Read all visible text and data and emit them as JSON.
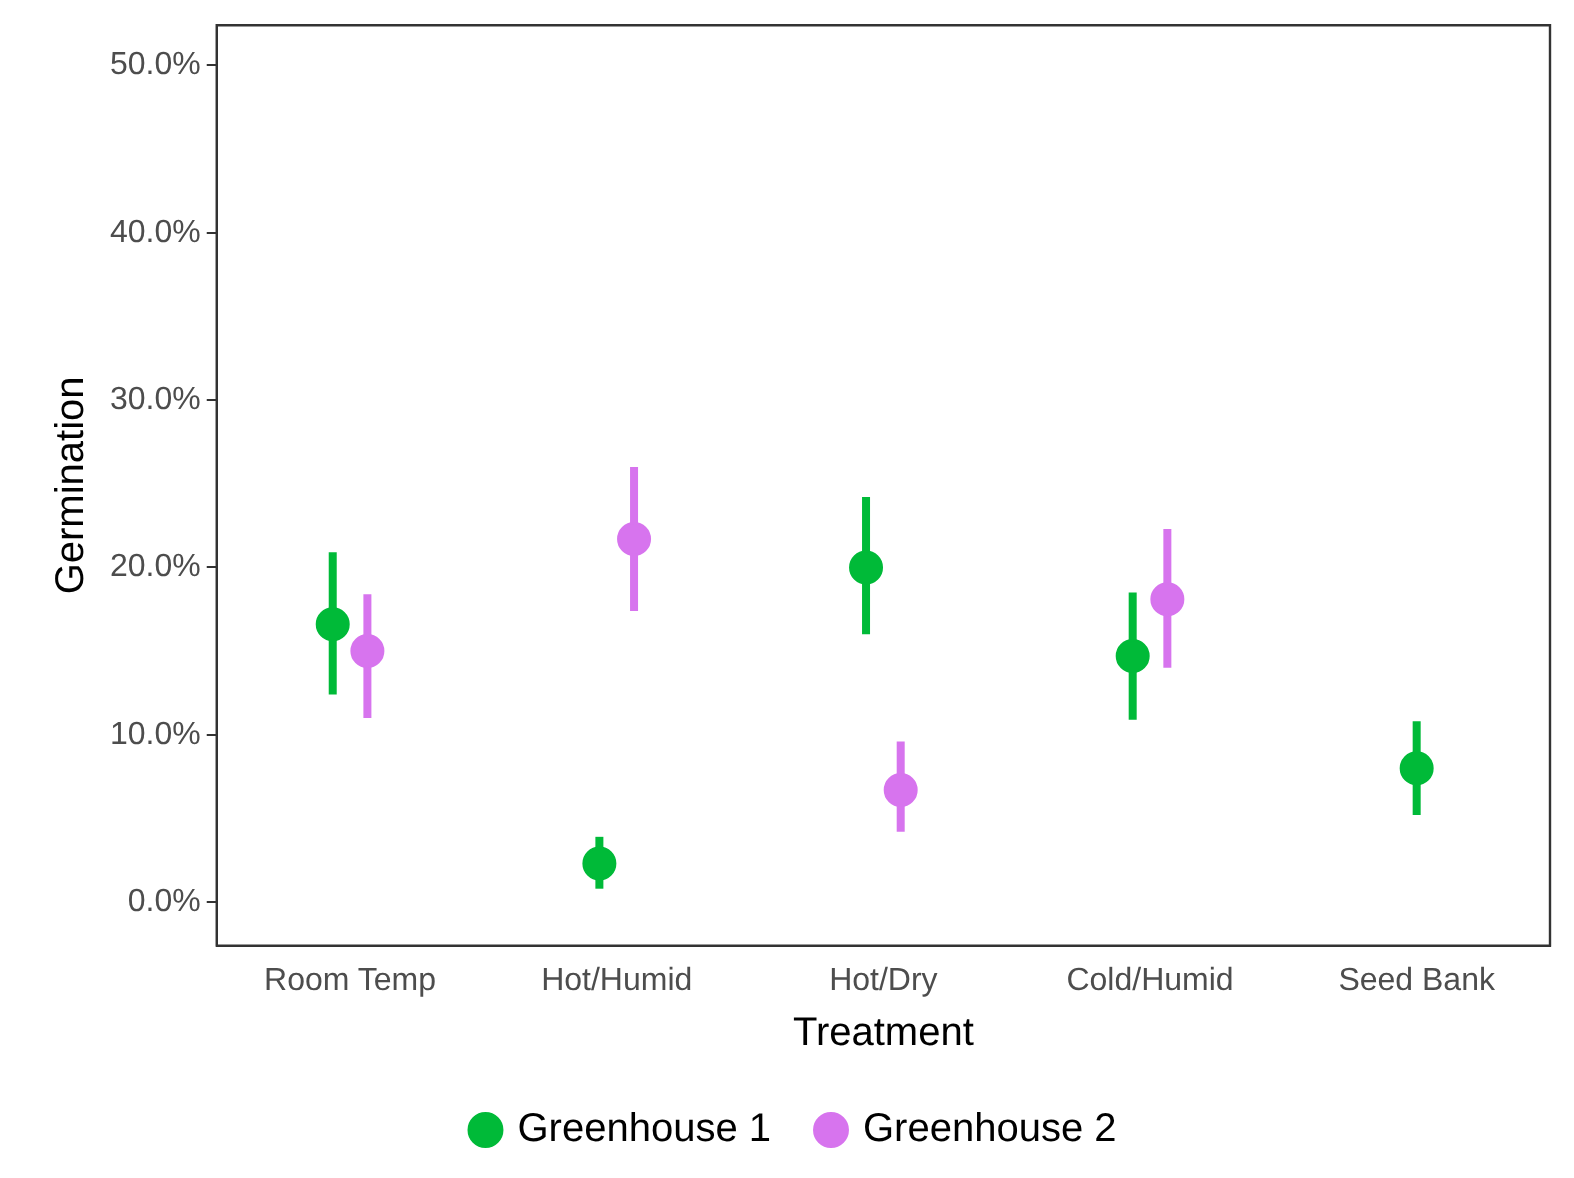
{
  "chart_data": {
    "type": "scatter",
    "xlabel": "Treatment",
    "ylabel": "Germination",
    "categories": [
      "Room Temp",
      "Hot/Humid",
      "Hot/Dry",
      "Cold/Humid",
      "Seed Bank"
    ],
    "series": [
      {
        "name": "Greenhouse 1",
        "color": "#00ba38",
        "values": [
          16.6,
          2.3,
          20.0,
          14.7,
          8.0
        ],
        "errors": [
          [
            12.4,
            20.9
          ],
          [
            0.8,
            3.9
          ],
          [
            16.0,
            24.2
          ],
          [
            10.9,
            18.5
          ],
          [
            5.2,
            10.8
          ]
        ]
      },
      {
        "name": "Greenhouse 2",
        "color": "#d774ee",
        "values": [
          15.0,
          21.7,
          6.7,
          18.1,
          null
        ],
        "errors": [
          [
            11.0,
            18.4
          ],
          [
            17.4,
            26.0
          ],
          [
            4.2,
            9.6
          ],
          [
            14.0,
            22.3
          ],
          null
        ]
      }
    ],
    "ylim": [
      -2.6,
      52.4
    ],
    "yticks": [
      {
        "value": 0,
        "label": "0.0%"
      },
      {
        "value": 10,
        "label": "10.0%"
      },
      {
        "value": 20,
        "label": "20.0%"
      },
      {
        "value": 30,
        "label": "30.0%"
      },
      {
        "value": 40,
        "label": "40.0%"
      },
      {
        "value": 50,
        "label": "50.0%"
      }
    ],
    "grid": false,
    "legend": "bottom",
    "marker": "circle"
  }
}
